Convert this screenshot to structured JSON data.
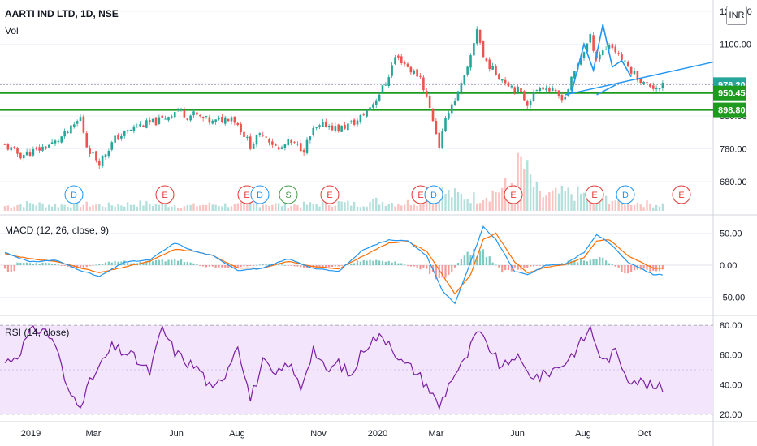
{
  "symbol": "AARTI IND LTD, 1D, NSE",
  "volume_label": "Vol",
  "currency": "INR",
  "macd_label": "MACD (12, 26, close, 9)",
  "rsi_label": "RSI (14, close)",
  "colors": {
    "up": "#26a69a",
    "down": "#ef5350",
    "green_line": "#1e9a1e",
    "blue": "#2196f3",
    "macd": "#2196f3",
    "signal": "#ff6d00",
    "rsi": "#7b1fa2",
    "rsi_band": "#f3e5fc",
    "event_red": "#e53935",
    "event_blue": "#2196f3",
    "event_green": "#43a047"
  },
  "x_axis": {
    "ticks": [
      "2019",
      "Mar",
      "Jun",
      "Aug",
      "Nov",
      "2020",
      "Mar",
      "Jun",
      "Aug",
      "Oct"
    ]
  },
  "events": [
    "D",
    "E",
    "E",
    "D",
    "S",
    "E",
    "E",
    "D",
    "E",
    "E",
    "D",
    "E"
  ],
  "chart_data": [
    {
      "type": "candlestick",
      "title": "AARTI IND LTD, 1D, NSE",
      "y_ticks": [
        "1200.00",
        "1100.00",
        "980.00",
        "880.00",
        "780.00",
        "680.00"
      ],
      "ylim": [
        640,
        1210
      ],
      "horizontal_levels": [
        {
          "label": "976.20",
          "value": 976.2,
          "color": "#26a69a"
        },
        {
          "label": "950.45",
          "value": 950.45,
          "color": "#1e9a1e"
        },
        {
          "label": "898.80",
          "value": 898.8,
          "color": "#1e9a1e"
        }
      ],
      "close_points": [
        [
          0,
          790
        ],
        [
          5,
          760
        ],
        [
          10,
          775
        ],
        [
          16,
          800
        ],
        [
          21,
          840
        ],
        [
          24,
          875
        ],
        [
          26,
          790
        ],
        [
          28,
          760
        ],
        [
          30,
          740
        ],
        [
          35,
          810
        ],
        [
          42,
          850
        ],
        [
          47,
          860
        ],
        [
          50,
          870
        ],
        [
          55,
          900
        ],
        [
          58,
          880
        ],
        [
          60,
          885
        ],
        [
          66,
          860
        ],
        [
          72,
          880
        ],
        [
          75,
          840
        ],
        [
          78,
          790
        ],
        [
          82,
          830
        ],
        [
          87,
          775
        ],
        [
          90,
          800
        ],
        [
          95,
          780
        ],
        [
          98,
          835
        ],
        [
          102,
          855
        ],
        [
          106,
          840
        ],
        [
          112,
          865
        ],
        [
          117,
          920
        ],
        [
          121,
          980
        ],
        [
          124,
          1060
        ],
        [
          126,
          1050
        ],
        [
          129,
          1020
        ],
        [
          132,
          1000
        ],
        [
          136,
          870
        ],
        [
          138,
          790
        ],
        [
          141,
          900
        ],
        [
          144,
          950
        ],
        [
          147,
          1020
        ],
        [
          150,
          1150
        ],
        [
          152,
          1060
        ],
        [
          156,
          1010
        ],
        [
          160,
          980
        ],
        [
          163,
          960
        ],
        [
          166,
          920
        ],
        [
          170,
          975
        ],
        [
          173,
          960
        ],
        [
          176,
          940
        ],
        [
          178,
          940
        ],
        [
          182,
          1040
        ],
        [
          186,
          1120
        ],
        [
          188,
          1060
        ],
        [
          192,
          1100
        ],
        [
          195,
          1070
        ],
        [
          197,
          1040
        ],
        [
          200,
          1010
        ],
        [
          203,
          980
        ],
        [
          206,
          970
        ]
      ],
      "volume_bars": [
        [
          0,
          6
        ],
        [
          8,
          9
        ],
        [
          16,
          7
        ],
        [
          24,
          8
        ],
        [
          33,
          7
        ],
        [
          42,
          9
        ],
        [
          50,
          8
        ],
        [
          58,
          6
        ],
        [
          66,
          8
        ],
        [
          74,
          7
        ],
        [
          82,
          9
        ],
        [
          90,
          7
        ],
        [
          98,
          8
        ],
        [
          106,
          10
        ],
        [
          112,
          8
        ],
        [
          118,
          12
        ],
        [
          126,
          9
        ],
        [
          134,
          14
        ],
        [
          138,
          24
        ],
        [
          142,
          20
        ],
        [
          150,
          16
        ],
        [
          160,
          30
        ],
        [
          164,
          58
        ],
        [
          170,
          18
        ],
        [
          180,
          22
        ],
        [
          186,
          18
        ],
        [
          196,
          12
        ],
        [
          206,
          8
        ]
      ]
    },
    {
      "type": "line",
      "title": "MACD (12, 26, close, 9)",
      "y_ticks": [
        "50.00",
        "0.00",
        "-50.00"
      ],
      "ylim": [
        -75,
        75
      ],
      "series": [
        {
          "key": "macd",
          "points": [
            [
              0,
              20
            ],
            [
              8,
              5
            ],
            [
              16,
              8
            ],
            [
              24,
              -8
            ],
            [
              30,
              -18
            ],
            [
              38,
              5
            ],
            [
              46,
              8
            ],
            [
              54,
              35
            ],
            [
              60,
              22
            ],
            [
              66,
              15
            ],
            [
              74,
              -8
            ],
            [
              82,
              -5
            ],
            [
              90,
              10
            ],
            [
              98,
              -5
            ],
            [
              106,
              -10
            ],
            [
              114,
              25
            ],
            [
              122,
              40
            ],
            [
              128,
              38
            ],
            [
              134,
              15
            ],
            [
              139,
              -40
            ],
            [
              143,
              -60
            ],
            [
              148,
              5
            ],
            [
              152,
              60
            ],
            [
              156,
              40
            ],
            [
              162,
              -10
            ],
            [
              166,
              -15
            ],
            [
              172,
              0
            ],
            [
              178,
              2
            ],
            [
              184,
              20
            ],
            [
              188,
              48
            ],
            [
              192,
              35
            ],
            [
              198,
              5
            ],
            [
              206,
              -15
            ]
          ]
        },
        {
          "key": "signal",
          "points": [
            [
              0,
              18
            ],
            [
              8,
              10
            ],
            [
              16,
              6
            ],
            [
              24,
              -4
            ],
            [
              30,
              -12
            ],
            [
              38,
              -3
            ],
            [
              46,
              6
            ],
            [
              54,
              25
            ],
            [
              60,
              22
            ],
            [
              66,
              15
            ],
            [
              74,
              -4
            ],
            [
              82,
              -5
            ],
            [
              90,
              6
            ],
            [
              98,
              -2
            ],
            [
              106,
              -6
            ],
            [
              114,
              15
            ],
            [
              122,
              35
            ],
            [
              128,
              37
            ],
            [
              134,
              22
            ],
            [
              139,
              -15
            ],
            [
              143,
              -45
            ],
            [
              148,
              -15
            ],
            [
              152,
              40
            ],
            [
              156,
              50
            ],
            [
              162,
              5
            ],
            [
              166,
              -12
            ],
            [
              172,
              -3
            ],
            [
              178,
              1
            ],
            [
              184,
              12
            ],
            [
              188,
              38
            ],
            [
              192,
              40
            ],
            [
              198,
              15
            ],
            [
              206,
              -5
            ]
          ]
        }
      ],
      "histogram": [
        [
          4,
          4
        ],
        [
          14,
          3
        ],
        [
          24,
          -5
        ],
        [
          34,
          6
        ],
        [
          44,
          4
        ],
        [
          54,
          10
        ],
        [
          64,
          -3
        ],
        [
          74,
          -4
        ],
        [
          84,
          3
        ],
        [
          94,
          -3
        ],
        [
          104,
          -4
        ],
        [
          114,
          8
        ],
        [
          124,
          5
        ],
        [
          134,
          -8
        ],
        [
          140,
          -25
        ],
        [
          146,
          18
        ],
        [
          152,
          22
        ],
        [
          158,
          -10
        ],
        [
          164,
          -6
        ],
        [
          174,
          3
        ],
        [
          184,
          8
        ],
        [
          190,
          12
        ],
        [
          196,
          -10
        ],
        [
          204,
          -8
        ]
      ]
    },
    {
      "type": "line",
      "title": "RSI (14, close)",
      "y_ticks": [
        "80.00",
        "60.00",
        "40.00",
        "20.00"
      ],
      "ylim": [
        15,
        85
      ],
      "bands": [
        20,
        80
      ],
      "series": [
        {
          "key": "rsi",
          "points": [
            [
              0,
              55
            ],
            [
              4,
              60
            ],
            [
              8,
              75
            ],
            [
              12,
              78
            ],
            [
              16,
              68
            ],
            [
              20,
              35
            ],
            [
              24,
              28
            ],
            [
              28,
              45
            ],
            [
              34,
              65
            ],
            [
              40,
              60
            ],
            [
              46,
              48
            ],
            [
              50,
              78
            ],
            [
              54,
              62
            ],
            [
              58,
              55
            ],
            [
              62,
              50
            ],
            [
              66,
              35
            ],
            [
              70,
              48
            ],
            [
              74,
              68
            ],
            [
              78,
              30
            ],
            [
              82,
              55
            ],
            [
              86,
              45
            ],
            [
              90,
              55
            ],
            [
              94,
              38
            ],
            [
              98,
              65
            ],
            [
              102,
              48
            ],
            [
              106,
              55
            ],
            [
              110,
              45
            ],
            [
              114,
              65
            ],
            [
              118,
              72
            ],
            [
              122,
              70
            ],
            [
              126,
              55
            ],
            [
              130,
              50
            ],
            [
              134,
              40
            ],
            [
              138,
              25
            ],
            [
              142,
              45
            ],
            [
              146,
              55
            ],
            [
              150,
              75
            ],
            [
              154,
              65
            ],
            [
              158,
              50
            ],
            [
              162,
              60
            ],
            [
              166,
              48
            ],
            [
              170,
              45
            ],
            [
              174,
              50
            ],
            [
              178,
              55
            ],
            [
              182,
              65
            ],
            [
              186,
              78
            ],
            [
              190,
              55
            ],
            [
              194,
              62
            ],
            [
              198,
              45
            ],
            [
              202,
              42
            ],
            [
              206,
              38
            ]
          ]
        }
      ]
    }
  ]
}
